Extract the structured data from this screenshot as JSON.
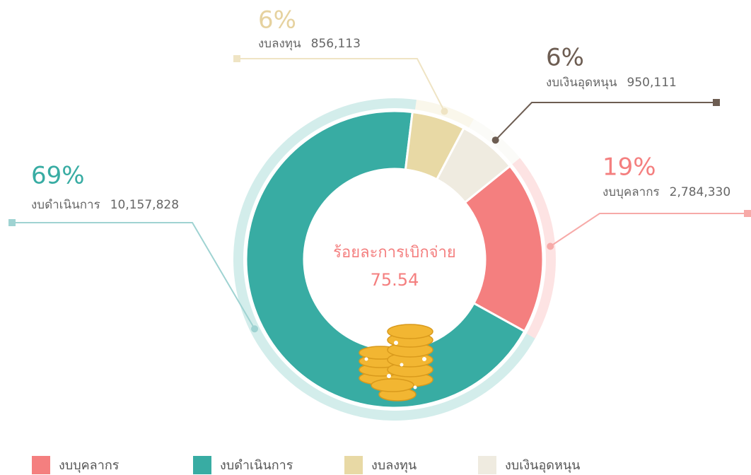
{
  "chart_data": {
    "type": "donut",
    "categories": [
      "งบบุคลากร",
      "งบดำเนินการ",
      "งบลงทุน",
      "งบเงินอุดหนุน"
    ],
    "values": [
      2784330,
      10157828,
      856113,
      950111
    ],
    "value_labels": [
      "2,784,330",
      "10,157,828",
      "856,113",
      "950,111"
    ],
    "shares": [
      19,
      69,
      6,
      6
    ],
    "share_labels": [
      "19%",
      "69%",
      "6%",
      "6%"
    ],
    "colors": [
      "#f47f7f",
      "#38aca3",
      "#e8d9a5",
      "#efebe0"
    ],
    "center_title": "ร้อยละการเบิกจ่าย",
    "center_value": 75.54
  }
}
